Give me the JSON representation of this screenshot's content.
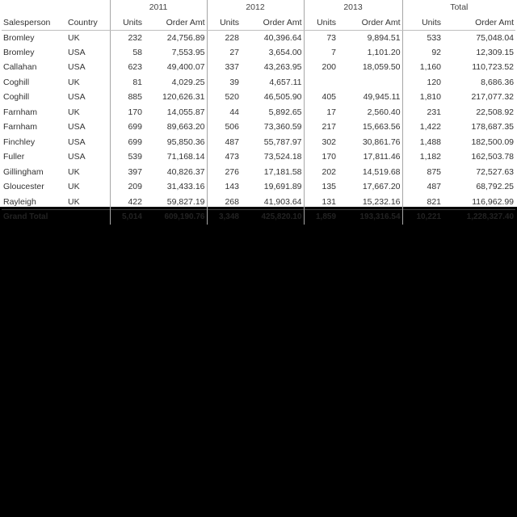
{
  "header": {
    "years": [
      "2011",
      "2012",
      "2013",
      "Total"
    ],
    "columns": [
      "Salesperson",
      "Country",
      "Units",
      "Order Amt",
      "Units",
      "Order Amt",
      "Units",
      "Order Amt",
      "Units",
      "Order Amt"
    ]
  },
  "rows": [
    [
      "Bromley",
      "UK",
      "232",
      "24,756.89",
      "228",
      "40,396.64",
      "73",
      "9,894.51",
      "533",
      "75,048.04"
    ],
    [
      "Bromley",
      "USA",
      "58",
      "7,553.95",
      "27",
      "3,654.00",
      "7",
      "1,101.20",
      "92",
      "12,309.15"
    ],
    [
      "Callahan",
      "USA",
      "623",
      "49,400.07",
      "337",
      "43,263.95",
      "200",
      "18,059.50",
      "1,160",
      "110,723.52"
    ],
    [
      "Coghill",
      "UK",
      "81",
      "4,029.25",
      "39",
      "4,657.11",
      "",
      "",
      "120",
      "8,686.36"
    ],
    [
      "Coghill",
      "USA",
      "885",
      "120,626.31",
      "520",
      "46,505.90",
      "405",
      "49,945.11",
      "1,810",
      "217,077.32"
    ],
    [
      "Farnham",
      "UK",
      "170",
      "14,055.87",
      "44",
      "5,892.65",
      "17",
      "2,560.40",
      "231",
      "22,508.92"
    ],
    [
      "Farnham",
      "USA",
      "699",
      "89,663.20",
      "506",
      "73,360.59",
      "217",
      "15,663.56",
      "1,422",
      "178,687.35"
    ],
    [
      "Finchley",
      "USA",
      "699",
      "95,850.36",
      "487",
      "55,787.97",
      "302",
      "30,861.76",
      "1,488",
      "182,500.09"
    ],
    [
      "Fuller",
      "USA",
      "539",
      "71,168.14",
      "473",
      "73,524.18",
      "170",
      "17,811.46",
      "1,182",
      "162,503.78"
    ],
    [
      "Gillingham",
      "UK",
      "397",
      "40,826.37",
      "276",
      "17,181.58",
      "202",
      "14,519.68",
      "875",
      "72,527.63"
    ],
    [
      "Gloucester",
      "UK",
      "209",
      "31,433.16",
      "143",
      "19,691.89",
      "135",
      "17,667.20",
      "487",
      "68,792.25"
    ],
    [
      "Rayleigh",
      "UK",
      "422",
      "59,827.19",
      "268",
      "41,903.64",
      "131",
      "15,232.16",
      "821",
      "116,962.99"
    ]
  ],
  "total": [
    "Grand Total",
    "",
    "5,014",
    "609,190.76",
    "3,348",
    "425,820.10",
    "1,859",
    "193,316.54",
    "10,221",
    "1,228,327.40"
  ]
}
